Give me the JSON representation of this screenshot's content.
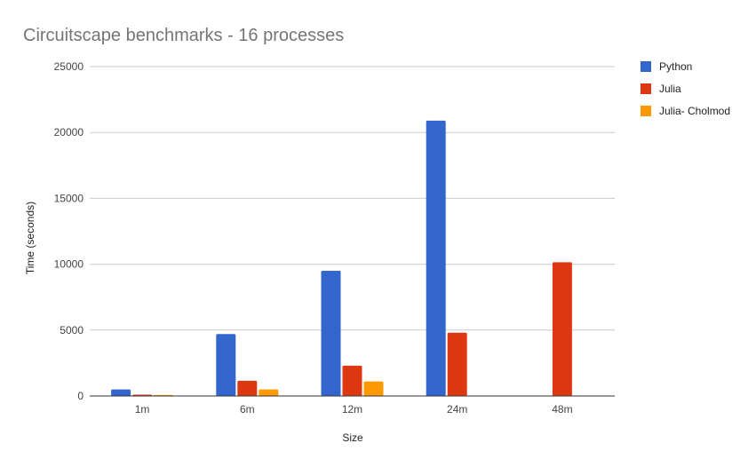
{
  "chart_data": {
    "type": "bar",
    "title": "Circuitscape benchmarks - 16 processes",
    "xlabel": "Size",
    "ylabel": "Time (seconds)",
    "categories": [
      "1m",
      "6m",
      "12m",
      "24m",
      "48m"
    ],
    "ylim": [
      0,
      25000
    ],
    "yticks": [
      0,
      5000,
      10000,
      15000,
      20000,
      25000
    ],
    "grid": true,
    "legend_position": "right",
    "series": [
      {
        "name": "Python",
        "color": "#3366cc",
        "values": [
          500,
          4700,
          9500,
          20900,
          null
        ]
      },
      {
        "name": "Julia",
        "color": "#dc3912",
        "values": [
          100,
          1150,
          2300,
          4800,
          10150
        ]
      },
      {
        "name": "Julia- Cholmod",
        "color": "#ff9900",
        "values": [
          80,
          500,
          1100,
          null,
          null
        ]
      }
    ]
  }
}
